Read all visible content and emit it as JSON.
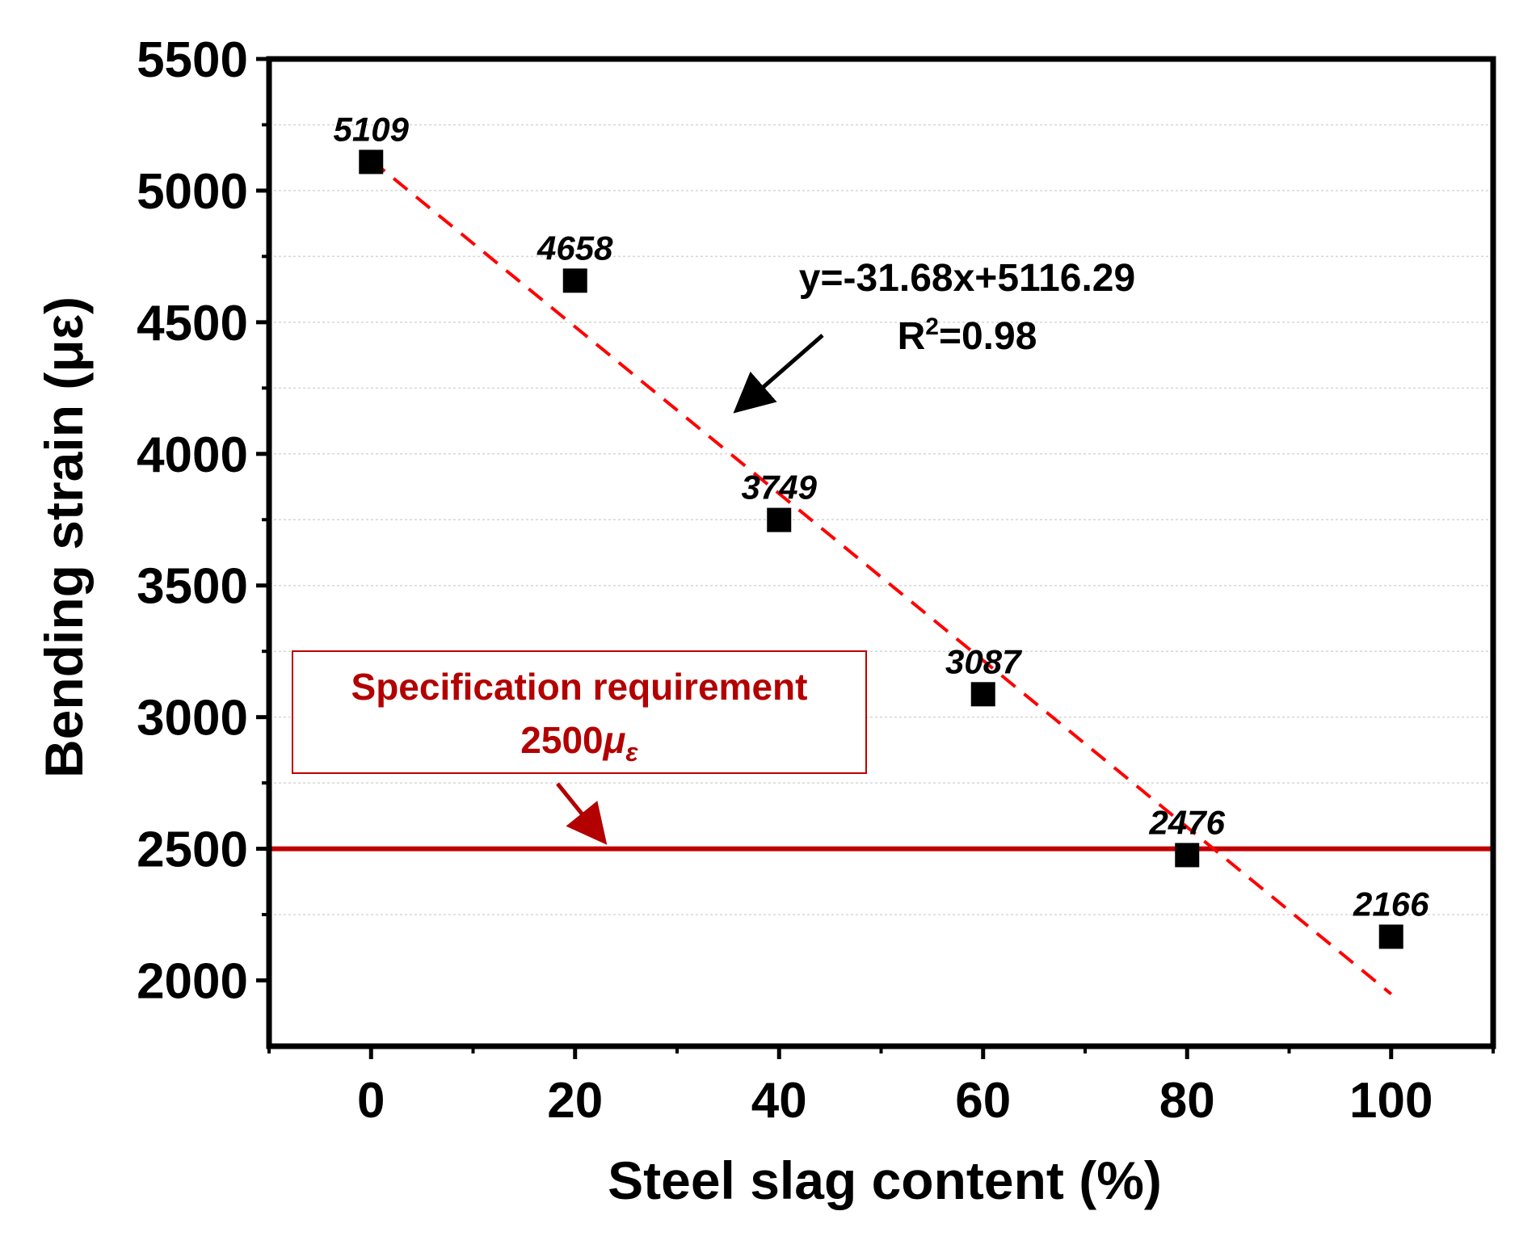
{
  "chart_data": {
    "type": "scatter",
    "title": "",
    "xlabel": "Steel slag content (%)",
    "ylabel": "Bending strain (με)",
    "xlim": [
      -10,
      110
    ],
    "ylim": [
      1750,
      5500
    ],
    "x_ticks": [
      0,
      20,
      40,
      60,
      80,
      100
    ],
    "y_ticks": [
      2000,
      2500,
      3000,
      3500,
      4000,
      4500,
      5000,
      5500
    ],
    "x_tick_labels": [
      "0",
      "20",
      "40",
      "60",
      "80",
      "100"
    ],
    "y_tick_labels": [
      "2000",
      "2500",
      "3000",
      "3500",
      "4000",
      "4500",
      "5000",
      "5500"
    ],
    "grid": true,
    "series": [
      {
        "name": "Bending strain",
        "x": [
          0,
          20,
          40,
          60,
          80,
          100
        ],
        "y": [
          5109,
          4658,
          3749,
          3087,
          2476,
          2166
        ],
        "labels": [
          "5109",
          "4658",
          "3749",
          "3087",
          "2476",
          "2166"
        ],
        "marker": "square",
        "color": "#000000"
      }
    ],
    "fit": {
      "slope": -31.68,
      "intercept": 5116.29,
      "x_range": [
        0,
        100
      ],
      "color": "#ff0000",
      "style": "dashed",
      "equation_label": "y=-31.68x+5116.29",
      "r2_prefix": "R",
      "r2_sup": "2",
      "r2_suffix": "=0.98"
    },
    "reference_line": {
      "y": 2500,
      "color": "#c00000",
      "label_line1": "Specification requirement",
      "label_line2_value": "2500",
      "label_line2_symbol": "μ",
      "label_line2_sub": "ε"
    }
  }
}
